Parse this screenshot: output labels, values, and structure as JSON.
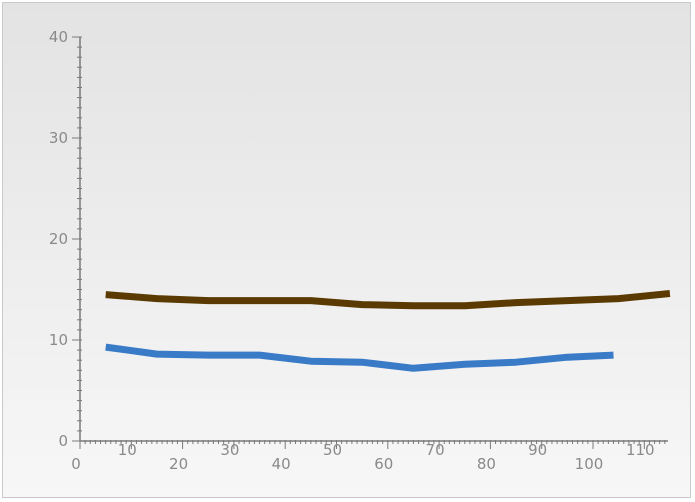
{
  "chart_data": {
    "type": "line",
    "title": "",
    "xlabel": "",
    "ylabel": "",
    "xlim": [
      0,
      115
    ],
    "ylim": [
      0,
      40
    ],
    "x_ticks": [
      0,
      10,
      20,
      30,
      40,
      50,
      60,
      70,
      80,
      90,
      100,
      110
    ],
    "y_ticks": [
      0,
      10,
      20,
      30,
      40
    ],
    "x_tick_labels": [
      "0",
      "10",
      "20",
      "30",
      "40",
      "50",
      "60",
      "70",
      "80",
      "90",
      "100",
      "110"
    ],
    "y_tick_labels": [
      "0",
      "10",
      "20",
      "30",
      "40"
    ],
    "grid": false,
    "legend": "none",
    "series": [
      {
        "color": "#5a3a00",
        "x": [
          5,
          15,
          25,
          35,
          45,
          55,
          65,
          75,
          85,
          95,
          105,
          115
        ],
        "y": [
          14.5,
          14.1,
          13.9,
          13.9,
          13.9,
          13.5,
          13.4,
          13.4,
          13.7,
          13.9,
          14.1,
          14.6
        ]
      },
      {
        "color": "#3a7bc8",
        "x": [
          5,
          15,
          25,
          35,
          45,
          55,
          65,
          75,
          85,
          95,
          104
        ],
        "y": [
          9.3,
          8.6,
          8.5,
          8.5,
          7.9,
          7.8,
          7.2,
          7.6,
          7.8,
          8.3,
          8.5
        ]
      }
    ]
  }
}
